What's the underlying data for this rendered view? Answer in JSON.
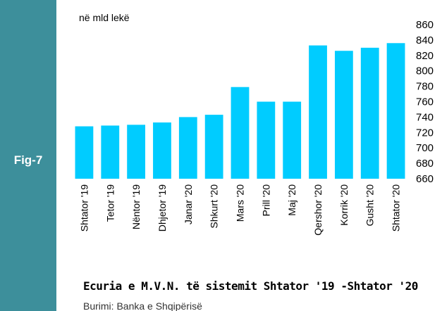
{
  "figure_label": "Fig-7",
  "chart_data": {
    "type": "bar",
    "title": "Ecuria e M.V.N. të sistemit Shtator '19 -Shtator '20",
    "unit_label": "në mld lekë",
    "source": "Burimi: Banka e Shqipërisë",
    "categories": [
      "Shtator '19",
      "Tetor '19",
      "Nëntor '19",
      "Dhjetor '19",
      "Janar '20",
      "Shkurt '20",
      "Mars '20",
      "Prill '20",
      "Maj '20",
      "Qershor '20",
      "Korrik '20",
      "Gusht '20",
      "Shtator '20"
    ],
    "values": [
      728,
      729,
      730,
      733,
      740,
      743,
      779,
      760,
      760,
      833,
      826,
      830,
      836
    ],
    "color": "#00ccff",
    "ylim": [
      660,
      860
    ],
    "yticks": [
      660,
      680,
      700,
      720,
      740,
      760,
      780,
      800,
      820,
      840,
      860
    ],
    "grid": false
  }
}
